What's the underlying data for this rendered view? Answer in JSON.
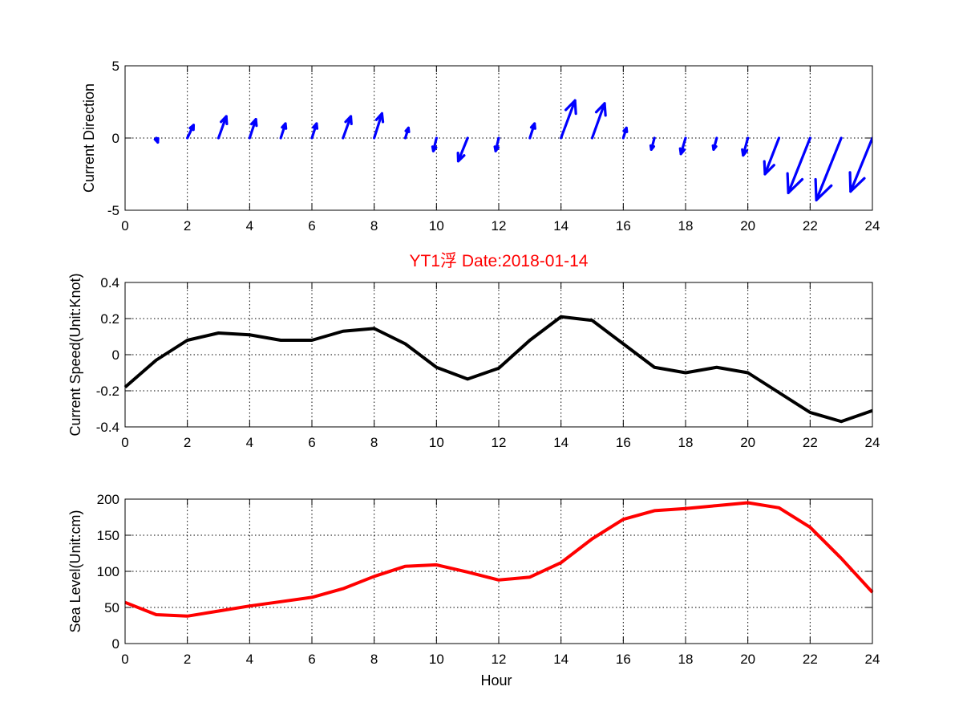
{
  "figure_title": "YT1浮    Date:2018-01-14",
  "colors": {
    "arrows": "#0000ff",
    "speed": "#000000",
    "sea_level": "#ff0000",
    "title": "#ff0000"
  },
  "chart_data": [
    {
      "type": "quiver",
      "ylabel": "Current Direction",
      "xlim": [
        0,
        24
      ],
      "ylim": [
        -5,
        5
      ],
      "xticks": [
        0,
        2,
        4,
        6,
        8,
        10,
        12,
        14,
        16,
        18,
        20,
        22,
        24
      ],
      "yticks": [
        -5,
        0,
        5
      ],
      "grid": true,
      "color": "#0000ff",
      "arrows": [
        {
          "x": 1,
          "u": 0.05,
          "v": -0.3
        },
        {
          "x": 2,
          "u": 0.2,
          "v": 0.9
        },
        {
          "x": 3,
          "u": 0.25,
          "v": 1.5
        },
        {
          "x": 4,
          "u": 0.2,
          "v": 1.3
        },
        {
          "x": 5,
          "u": 0.15,
          "v": 1.0
        },
        {
          "x": 6,
          "u": 0.15,
          "v": 1.0
        },
        {
          "x": 7,
          "u": 0.25,
          "v": 1.5
        },
        {
          "x": 8,
          "u": 0.25,
          "v": 1.7
        },
        {
          "x": 9,
          "u": 0.1,
          "v": 0.7
        },
        {
          "x": 10,
          "u": -0.1,
          "v": -0.9
        },
        {
          "x": 11,
          "u": -0.3,
          "v": -1.6
        },
        {
          "x": 12,
          "u": -0.1,
          "v": -0.9
        },
        {
          "x": 13,
          "u": 0.15,
          "v": 1.0
        },
        {
          "x": 14,
          "u": 0.45,
          "v": 2.6
        },
        {
          "x": 15,
          "u": 0.4,
          "v": 2.4
        },
        {
          "x": 16,
          "u": 0.1,
          "v": 0.7
        },
        {
          "x": 17,
          "u": -0.1,
          "v": -0.8
        },
        {
          "x": 18,
          "u": -0.15,
          "v": -1.1
        },
        {
          "x": 19,
          "u": -0.1,
          "v": -0.8
        },
        {
          "x": 20,
          "u": -0.15,
          "v": -1.2
        },
        {
          "x": 21,
          "u": -0.45,
          "v": -2.5
        },
        {
          "x": 22,
          "u": -0.7,
          "v": -3.8
        },
        {
          "x": 23,
          "u": -0.8,
          "v": -4.3
        },
        {
          "x": 24,
          "u": -0.7,
          "v": -3.7
        }
      ]
    },
    {
      "type": "line",
      "ylabel": "Current Speed(Unit:Knot)",
      "xlim": [
        0,
        24
      ],
      "ylim": [
        -0.4,
        0.4
      ],
      "xticks": [
        0,
        2,
        4,
        6,
        8,
        10,
        12,
        14,
        16,
        18,
        20,
        22,
        24
      ],
      "yticks": [
        -0.4,
        -0.2,
        0,
        0.2,
        0.4
      ],
      "grid": true,
      "color": "#000000",
      "x": [
        0,
        1,
        2,
        3,
        4,
        5,
        6,
        7,
        8,
        9,
        10,
        11,
        12,
        13,
        14,
        15,
        16,
        17,
        18,
        19,
        20,
        21,
        22,
        23,
        24
      ],
      "y": [
        -0.18,
        -0.03,
        0.08,
        0.12,
        0.11,
        0.08,
        0.08,
        0.13,
        0.145,
        0.06,
        -0.07,
        -0.135,
        -0.075,
        0.08,
        0.21,
        0.19,
        0.06,
        -0.07,
        -0.1,
        -0.07,
        -0.1,
        -0.21,
        -0.32,
        -0.37,
        -0.31
      ]
    },
    {
      "type": "line",
      "xlabel": "Hour",
      "ylabel": "Sea Level(Unit:cm)",
      "xlim": [
        0,
        24
      ],
      "ylim": [
        0,
        200
      ],
      "xticks": [
        0,
        2,
        4,
        6,
        8,
        10,
        12,
        14,
        16,
        18,
        20,
        22,
        24
      ],
      "yticks": [
        0,
        50,
        100,
        150,
        200
      ],
      "grid": true,
      "color": "#ff0000",
      "x": [
        0,
        1,
        2,
        3,
        4,
        5,
        6,
        7,
        8,
        9,
        10,
        11,
        12,
        13,
        14,
        15,
        16,
        17,
        18,
        19,
        20,
        21,
        22,
        23,
        24
      ],
      "y": [
        57,
        40,
        38,
        45,
        52,
        58,
        64,
        76,
        93,
        107,
        109,
        99,
        88,
        92,
        112,
        145,
        172,
        184,
        187,
        191,
        195,
        188,
        161,
        118,
        71
      ]
    }
  ]
}
